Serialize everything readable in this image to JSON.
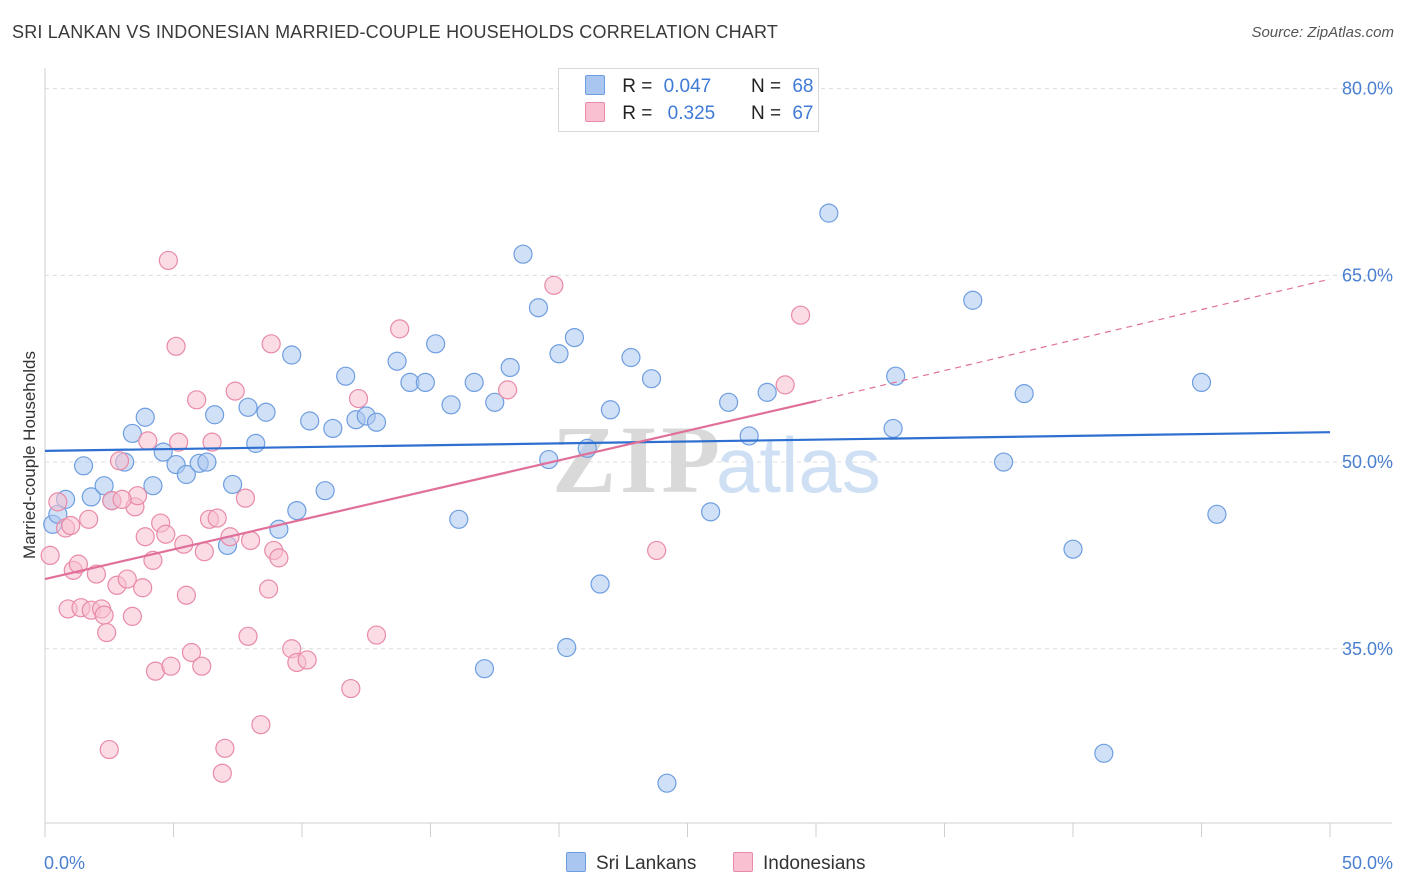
{
  "title": "SRI LANKAN VS INDONESIAN MARRIED-COUPLE HOUSEHOLDS CORRELATION CHART",
  "source": "Source: ZipAtlas.com",
  "watermark": {
    "zip": "ZIP",
    "atlas": "atlas"
  },
  "legend": {
    "r_label": "R =",
    "n_label": "N =",
    "rows": [
      {
        "r": "0.047",
        "n": "68",
        "color": "#a9c6f0",
        "border": "#6f9ee0"
      },
      {
        "r": "0.325",
        "n": "67",
        "color": "#f8c0d0",
        "border": "#e88aa8"
      }
    ]
  },
  "bottom_legend": [
    {
      "label": "Sri Lankans",
      "color": "#a9c6f0",
      "border": "#6f9ee0"
    },
    {
      "label": "Indonesians",
      "color": "#f8c0d0",
      "border": "#e88aa8"
    }
  ],
  "chart_data": {
    "type": "scatter",
    "title": "SRI LANKAN VS INDONESIAN MARRIED-COUPLE HOUSEHOLDS CORRELATION CHART",
    "xlabel": "",
    "ylabel": "Married-couple Households",
    "xlim": [
      0,
      50
    ],
    "ylim": [
      21,
      81.5
    ],
    "x_tick_labels": [
      "0.0%",
      "50.0%"
    ],
    "y_ticks": [
      35,
      50,
      65,
      80
    ],
    "y_tick_labels": [
      "35.0%",
      "50.0%",
      "65.0%",
      "80.0%"
    ],
    "grid": true,
    "series": [
      {
        "name": "Sri Lankans",
        "color": "#6f9ee0",
        "fill": "#a9c6f0",
        "trend": {
          "x": [
            0,
            50
          ],
          "y": [
            50.9,
            52.4
          ],
          "color": "#2e6fd0"
        },
        "points": [
          [
            0.3,
            45.0
          ],
          [
            0.5,
            45.8
          ],
          [
            0.8,
            47.0
          ],
          [
            1.5,
            49.7
          ],
          [
            1.8,
            47.2
          ],
          [
            2.3,
            48.1
          ],
          [
            2.6,
            46.9
          ],
          [
            3.1,
            50.0
          ],
          [
            3.4,
            52.3
          ],
          [
            3.9,
            53.6
          ],
          [
            4.2,
            48.1
          ],
          [
            4.6,
            50.8
          ],
          [
            5.1,
            49.8
          ],
          [
            5.5,
            49.0
          ],
          [
            6.0,
            49.9
          ],
          [
            6.3,
            50.0
          ],
          [
            6.6,
            53.8
          ],
          [
            7.1,
            43.3
          ],
          [
            7.3,
            48.2
          ],
          [
            7.9,
            54.4
          ],
          [
            8.2,
            51.5
          ],
          [
            8.6,
            54.0
          ],
          [
            9.1,
            44.6
          ],
          [
            9.6,
            58.6
          ],
          [
            9.8,
            46.1
          ],
          [
            10.3,
            53.3
          ],
          [
            10.9,
            47.7
          ],
          [
            11.2,
            52.7
          ],
          [
            11.7,
            56.9
          ],
          [
            12.1,
            53.4
          ],
          [
            12.5,
            53.7
          ],
          [
            12.9,
            53.2
          ],
          [
            13.7,
            58.1
          ],
          [
            14.2,
            56.4
          ],
          [
            14.8,
            56.4
          ],
          [
            15.2,
            59.5
          ],
          [
            15.8,
            54.6
          ],
          [
            16.1,
            45.4
          ],
          [
            16.7,
            56.4
          ],
          [
            17.1,
            33.4
          ],
          [
            17.5,
            54.8
          ],
          [
            18.1,
            57.6
          ],
          [
            18.6,
            66.7
          ],
          [
            19.2,
            62.4
          ],
          [
            19.6,
            50.2
          ],
          [
            20.0,
            58.7
          ],
          [
            20.3,
            35.1
          ],
          [
            20.6,
            60.0
          ],
          [
            21.1,
            51.1
          ],
          [
            21.6,
            40.2
          ],
          [
            22.0,
            54.2
          ],
          [
            22.8,
            58.4
          ],
          [
            23.6,
            56.7
          ],
          [
            24.2,
            24.2
          ],
          [
            25.9,
            46.0
          ],
          [
            26.6,
            54.8
          ],
          [
            27.4,
            52.1
          ],
          [
            28.1,
            55.6
          ],
          [
            30.5,
            70.0
          ],
          [
            33.0,
            52.7
          ],
          [
            33.1,
            56.9
          ],
          [
            36.1,
            63.0
          ],
          [
            37.3,
            50.0
          ],
          [
            38.1,
            55.5
          ],
          [
            40.0,
            43.0
          ],
          [
            41.2,
            26.6
          ],
          [
            45.0,
            56.4
          ],
          [
            45.6,
            45.8
          ]
        ]
      },
      {
        "name": "Indonesians",
        "color": "#e88aa8",
        "fill": "#f8c0d0",
        "trend": {
          "x": [
            0,
            30
          ],
          "y": [
            40.6,
            54.9
          ],
          "color": "#e0709a",
          "dashed_to": [
            50,
            64.7
          ]
        },
        "points": [
          [
            0.2,
            42.5
          ],
          [
            0.5,
            46.8
          ],
          [
            0.8,
            44.7
          ],
          [
            0.9,
            38.2
          ],
          [
            1.1,
            41.3
          ],
          [
            1.3,
            41.8
          ],
          [
            1.4,
            38.3
          ],
          [
            1.7,
            45.4
          ],
          [
            1.8,
            38.1
          ],
          [
            2.0,
            41.0
          ],
          [
            2.2,
            38.2
          ],
          [
            2.3,
            37.7
          ],
          [
            2.4,
            36.3
          ],
          [
            2.6,
            46.9
          ],
          [
            2.8,
            40.1
          ],
          [
            2.9,
            50.1
          ],
          [
            3.2,
            40.6
          ],
          [
            3.4,
            37.6
          ],
          [
            3.5,
            46.4
          ],
          [
            3.6,
            47.3
          ],
          [
            3.8,
            39.9
          ],
          [
            3.9,
            44.0
          ],
          [
            4.0,
            51.7
          ],
          [
            4.2,
            42.1
          ],
          [
            4.3,
            33.2
          ],
          [
            4.5,
            45.1
          ],
          [
            4.8,
            66.2
          ],
          [
            4.9,
            33.6
          ],
          [
            5.1,
            59.3
          ],
          [
            5.2,
            51.6
          ],
          [
            5.4,
            43.4
          ],
          [
            5.5,
            39.3
          ],
          [
            5.7,
            34.7
          ],
          [
            5.9,
            55.0
          ],
          [
            6.1,
            33.6
          ],
          [
            6.4,
            45.4
          ],
          [
            6.5,
            51.6
          ],
          [
            6.7,
            45.5
          ],
          [
            7.0,
            27.0
          ],
          [
            7.2,
            44.0
          ],
          [
            7.4,
            55.7
          ],
          [
            7.8,
            47.1
          ],
          [
            7.9,
            36.0
          ],
          [
            8.4,
            28.9
          ],
          [
            8.7,
            39.8
          ],
          [
            8.8,
            59.5
          ],
          [
            8.9,
            42.9
          ],
          [
            9.1,
            42.3
          ],
          [
            9.6,
            35.0
          ],
          [
            9.8,
            33.9
          ],
          [
            10.2,
            34.1
          ],
          [
            11.9,
            31.8
          ],
          [
            12.2,
            55.1
          ],
          [
            12.9,
            36.1
          ],
          [
            13.8,
            60.7
          ],
          [
            18.0,
            55.8
          ],
          [
            19.8,
            64.2
          ],
          [
            23.8,
            42.9
          ],
          [
            28.8,
            56.2
          ],
          [
            29.4,
            61.8
          ],
          [
            2.5,
            26.9
          ],
          [
            6.9,
            25.0
          ],
          [
            1.0,
            44.9
          ],
          [
            3.0,
            47.0
          ],
          [
            4.7,
            44.2
          ],
          [
            6.2,
            42.8
          ],
          [
            8.0,
            43.7
          ]
        ]
      }
    ]
  }
}
